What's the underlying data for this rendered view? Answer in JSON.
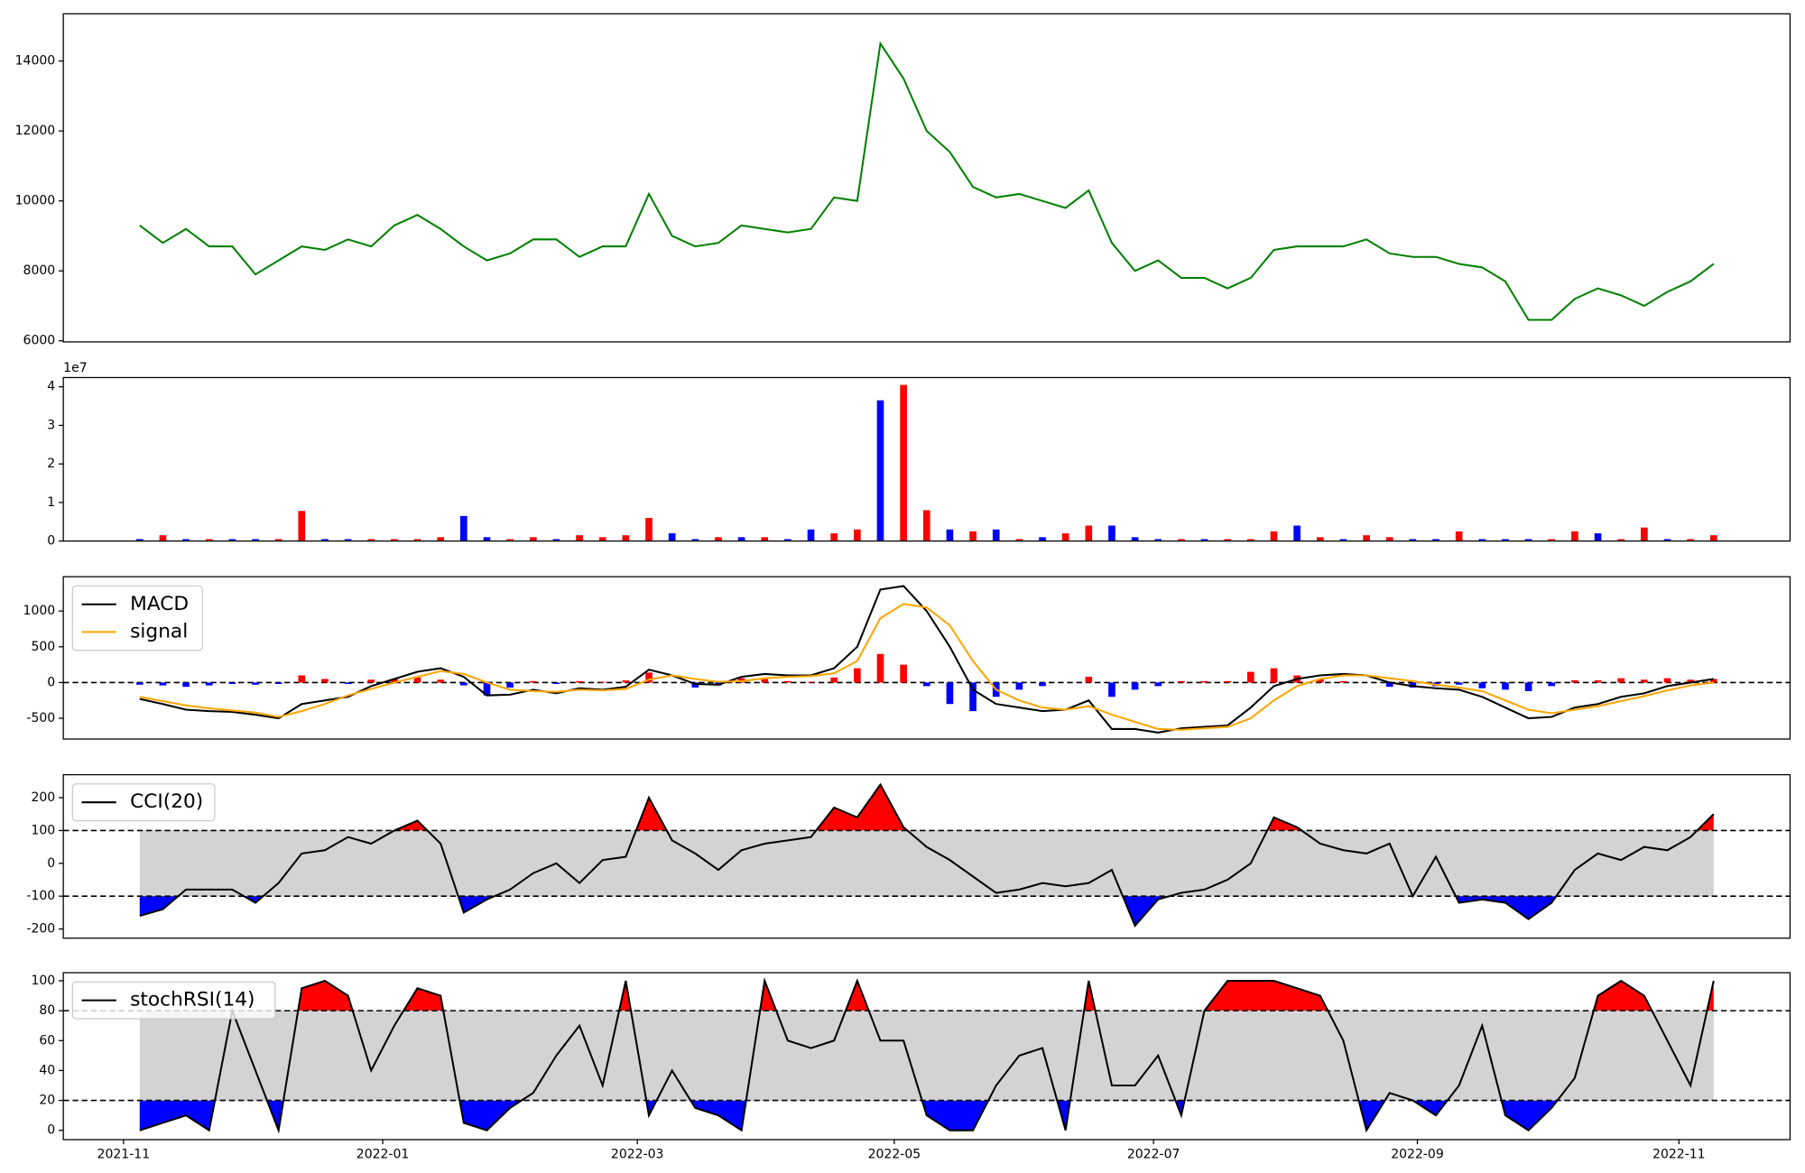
{
  "chart_data": [
    {
      "type": "line",
      "xlim": [
        -3.3,
        71.3
      ],
      "ylim": [
        5970,
        15350
      ],
      "yticks": [
        6000,
        8000,
        10000,
        12000,
        14000
      ],
      "series": [
        {
          "color": "green",
          "values": [
            9300,
            8800,
            9200,
            8700,
            8700,
            7900,
            8300,
            8700,
            8600,
            8900,
            8700,
            9300,
            9600,
            9200,
            8700,
            8300,
            8500,
            8900,
            8900,
            8400,
            8700,
            8700,
            10200,
            9000,
            8700,
            8800,
            9300,
            9200,
            9100,
            9200,
            10100,
            10000,
            14500,
            13500,
            12000,
            11400,
            10400,
            10100,
            10200,
            10000,
            9800,
            10300,
            8800,
            8000,
            8300,
            7800,
            7800,
            7500,
            7800,
            8600,
            8700,
            8700,
            8700,
            8900,
            8500,
            8400,
            8400,
            8200,
            8100,
            7700,
            6600,
            6600,
            7200,
            7500,
            7300,
            7000,
            7400,
            7700,
            8200
          ]
        }
      ]
    },
    {
      "type": "bar",
      "xlim": [
        -3.3,
        71.3
      ],
      "ylim": [
        0,
        4.24
      ],
      "yticks": [
        0,
        1,
        2,
        3,
        4
      ],
      "offset_label": "1e7",
      "values": [
        0.05,
        0.15,
        0.05,
        0.05,
        0.05,
        0.05,
        0.05,
        0.78,
        0.05,
        0.05,
        0.05,
        0.05,
        0.05,
        0.1,
        0.65,
        0.1,
        0.05,
        0.1,
        0.05,
        0.15,
        0.1,
        0.15,
        0.6,
        0.2,
        0.05,
        0.1,
        0.1,
        0.1,
        0.05,
        0.3,
        0.2,
        0.3,
        3.65,
        4.05,
        0.8,
        0.3,
        0.25,
        0.3,
        0.05,
        0.1,
        0.2,
        0.4,
        0.4,
        0.1,
        0.05,
        0.05,
        0.05,
        0.05,
        0.05,
        0.25,
        0.4,
        0.1,
        0.05,
        0.15,
        0.1,
        0.05,
        0.05,
        0.25,
        0.05,
        0.05,
        0.05,
        0.05,
        0.25,
        0.2,
        0.05,
        0.35,
        0.05,
        0.05,
        0.15
      ],
      "colors": [
        "blue",
        "red",
        "blue",
        "red",
        "blue",
        "blue",
        "red",
        "red",
        "blue",
        "blue",
        "red",
        "red",
        "red",
        "red",
        "blue",
        "blue",
        "red",
        "red",
        "blue",
        "red",
        "red",
        "red",
        "red",
        "blue",
        "blue",
        "red",
        "blue",
        "red",
        "blue",
        "blue",
        "red",
        "red",
        "blue",
        "red",
        "red",
        "blue",
        "red",
        "blue",
        "red",
        "blue",
        "red",
        "red",
        "blue",
        "blue",
        "blue",
        "red",
        "blue",
        "red",
        "red",
        "red",
        "blue",
        "red",
        "blue",
        "red",
        "red",
        "blue",
        "blue",
        "red",
        "blue",
        "blue",
        "blue",
        "red",
        "red",
        "blue",
        "red",
        "red",
        "blue",
        "red",
        "red"
      ]
    },
    {
      "type": "line",
      "xlim": [
        -3.3,
        71.3
      ],
      "ylim": [
        -790,
        1480
      ],
      "yticks": [
        -500,
        0,
        500,
        1000
      ],
      "hlines": [
        0
      ],
      "legend": "upper left",
      "series": [
        {
          "name": "MACD",
          "color": "black",
          "values": [
            -230,
            -300,
            -380,
            -400,
            -410,
            -450,
            -500,
            -300,
            -250,
            -200,
            -50,
            50,
            150,
            200,
            80,
            -180,
            -170,
            -100,
            -150,
            -80,
            -100,
            -60,
            180,
            100,
            -20,
            -30,
            80,
            120,
            100,
            100,
            200,
            500,
            1300,
            1350,
            1000,
            500,
            -100,
            -300,
            -350,
            -400,
            -380,
            -250,
            -650,
            -650,
            -700,
            -640,
            -620,
            -600,
            -350,
            -50,
            50,
            100,
            120,
            100,
            0,
            -50,
            -80,
            -100,
            -200,
            -350,
            -500,
            -480,
            -350,
            -300,
            -200,
            -150,
            -50,
            0,
            50
          ]
        },
        {
          "name": "signal",
          "color": "orange",
          "values": [
            -200,
            -260,
            -320,
            -360,
            -390,
            -420,
            -480,
            -400,
            -300,
            -180,
            -90,
            0,
            80,
            160,
            120,
            0,
            -100,
            -120,
            -130,
            -100,
            -110,
            -90,
            40,
            100,
            50,
            10,
            20,
            60,
            80,
            90,
            130,
            300,
            900,
            1100,
            1050,
            800,
            300,
            -100,
            -250,
            -350,
            -380,
            -330,
            -450,
            -550,
            -650,
            -660,
            -640,
            -620,
            -500,
            -250,
            -50,
            50,
            100,
            100,
            60,
            20,
            -30,
            -70,
            -120,
            -250,
            -380,
            -430,
            -380,
            -330,
            -260,
            -190,
            -110,
            -40,
            0
          ]
        }
      ],
      "histogram": {
        "pos_color": "red",
        "neg_color": "blue",
        "values": [
          -30,
          -40,
          -60,
          -40,
          -20,
          -30,
          -20,
          100,
          50,
          -20,
          40,
          50,
          70,
          40,
          -40,
          -180,
          -70,
          20,
          -20,
          20,
          10,
          30,
          140,
          0,
          -70,
          -40,
          60,
          60,
          20,
          10,
          70,
          200,
          400,
          250,
          -50,
          -300,
          -400,
          -200,
          -100,
          -50,
          0,
          80,
          -200,
          -100,
          -50,
          20,
          20,
          20,
          150,
          200,
          100,
          50,
          20,
          0,
          -60,
          -70,
          -50,
          -30,
          -80,
          -100,
          -120,
          -50,
          30,
          30,
          60,
          40,
          60,
          40,
          50
        ]
      }
    },
    {
      "type": "line",
      "xlim": [
        -3.3,
        71.3
      ],
      "ylim": [
        -228,
        270
      ],
      "yticks": [
        -200,
        -100,
        0,
        100,
        200
      ],
      "legend": "upper left",
      "band": {
        "lower": -100,
        "upper": 100,
        "color": "lightgray",
        "above_color": "red",
        "below_color": "blue"
      },
      "series": [
        {
          "name": "CCI(20)",
          "color": "black",
          "values": [
            -160,
            -140,
            -80,
            -80,
            -80,
            -120,
            -60,
            30,
            40,
            80,
            60,
            100,
            130,
            60,
            -150,
            -110,
            -80,
            -30,
            0,
            -60,
            10,
            20,
            200,
            70,
            30,
            -20,
            40,
            60,
            70,
            80,
            170,
            140,
            240,
            110,
            50,
            10,
            -40,
            -90,
            -80,
            -60,
            -70,
            -60,
            -20,
            -190,
            -110,
            -90,
            -80,
            -50,
            0,
            140,
            110,
            60,
            40,
            30,
            60,
            -100,
            20,
            -120,
            -110,
            -120,
            -170,
            -120,
            -20,
            30,
            10,
            50,
            40,
            80,
            150
          ]
        }
      ]
    },
    {
      "type": "line",
      "xlim": [
        -3.3,
        71.3
      ],
      "ylim": [
        -6.2,
        105.4
      ],
      "yticks": [
        0,
        20,
        40,
        60,
        80,
        100
      ],
      "legend": "upper left",
      "band": {
        "lower": 20,
        "upper": 80,
        "color": "lightgray",
        "above_color": "red",
        "below_color": "blue"
      },
      "xticks": [
        {
          "value": -0.7,
          "label": "2021-11"
        },
        {
          "value": 10.5,
          "label": "2022-01"
        },
        {
          "value": 21.5,
          "label": "2022-03"
        },
        {
          "value": 32.6,
          "label": "2022-05"
        },
        {
          "value": 43.8,
          "label": "2022-07"
        },
        {
          "value": 55.2,
          "label": "2022-09"
        },
        {
          "value": 66.5,
          "label": "2022-11"
        }
      ],
      "series": [
        {
          "name": "stochRSI(14)",
          "color": "black",
          "values": [
            0,
            5,
            10,
            0,
            80,
            40,
            0,
            95,
            100,
            90,
            40,
            70,
            95,
            90,
            5,
            0,
            15,
            25,
            50,
            70,
            30,
            100,
            10,
            40,
            15,
            10,
            0,
            100,
            60,
            55,
            60,
            100,
            60,
            60,
            10,
            0,
            0,
            30,
            50,
            55,
            0,
            100,
            30,
            30,
            50,
            10,
            80,
            100,
            100,
            100,
            95,
            90,
            60,
            0,
            25,
            20,
            10,
            30,
            70,
            10,
            0,
            15,
            35,
            90,
            100,
            90,
            60,
            30,
            100
          ]
        }
      ]
    }
  ]
}
